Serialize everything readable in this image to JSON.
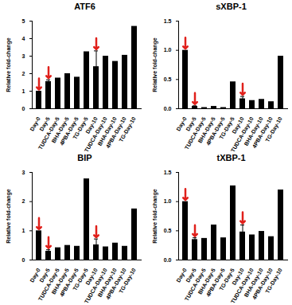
{
  "chart_data": [
    {
      "type": "bar",
      "title": "ATF6",
      "y_label": "Relative fold-change",
      "color": "#000000",
      "categories": [
        "Day-0",
        "Day-5",
        "TUDCA-Day-5",
        "BHA-Day-5",
        "4PBA-Day-5",
        "TG-Day-5",
        "Day-10",
        "TUDCA-Day-10",
        "BHA-Day-10",
        "4PBA-Day-10",
        "TG-Day-10"
      ],
      "values": [
        1.0,
        1.55,
        1.75,
        2.0,
        1.8,
        3.25,
        2.4,
        3.0,
        2.7,
        3.05,
        4.7
      ],
      "errors": [
        null,
        0.1,
        null,
        null,
        null,
        null,
        0.9,
        null,
        null,
        null,
        null
      ],
      "arrows": [
        "Day-0",
        "Day-5",
        "Day-10"
      ],
      "ylim": [
        0,
        5
      ],
      "yticks": [
        0,
        1,
        2,
        3,
        4,
        5
      ]
    },
    {
      "type": "bar",
      "title": "sXBP-1",
      "y_label": "Relative fold-change",
      "color": "#000000",
      "categories": [
        "Day-0",
        "Day-5",
        "TUDCA-Day-5",
        "BHA-Day-5",
        "4PBA-Day-5",
        "TG-Day-5",
        "Day-10",
        "TUDCA-Day-10",
        "BHA-Day-10",
        "4PBA-Day-10",
        "TG-Day-10"
      ],
      "values": [
        1.0,
        0.04,
        0.02,
        0.04,
        0.02,
        0.46,
        0.17,
        0.14,
        0.16,
        0.12,
        0.9
      ],
      "errors": [
        null,
        0.01,
        null,
        null,
        null,
        null,
        0.04,
        null,
        null,
        null,
        null
      ],
      "arrows": [
        "Day-0",
        "Day-5",
        "Day-10"
      ],
      "ylim": [
        0,
        1.5
      ],
      "yticks": [
        {
          "value": 0,
          "label": "0.0"
        },
        {
          "value": 0.5,
          "label": "0.5"
        },
        {
          "value": 1,
          "label": "1.0"
        },
        {
          "value": 1.5,
          "label": "1.5"
        }
      ]
    },
    {
      "type": "bar",
      "title": "BIP",
      "y_label": "Relative fold-change",
      "color": "#000000",
      "categories": [
        "Day-0",
        "Day-5",
        "TUDCA-Day-5",
        "BHA-Day-5",
        "4PBA-Day-5",
        "TG-Day-5",
        "Day-10",
        "TUDCA-Day-10",
        "BHA-Day-10",
        "4PBA-Day-10",
        "TG-Day-10"
      ],
      "values": [
        1.0,
        0.3,
        0.42,
        0.5,
        0.47,
        2.78,
        0.52,
        0.45,
        0.58,
        0.47,
        1.75
      ],
      "errors": [
        null,
        0.05,
        null,
        null,
        null,
        null,
        0.2,
        null,
        null,
        null,
        null
      ],
      "arrows": [
        "Day-0",
        "Day-5",
        "Day-10"
      ],
      "ylim": [
        0,
        3
      ],
      "yticks": [
        0,
        1,
        2,
        3
      ]
    },
    {
      "type": "bar",
      "title": "tXBP-1",
      "y_label": "Relative fold-change",
      "color": "#000000",
      "categories": [
        "Day-0",
        "Day-5",
        "TUDCA-Day-5",
        "BHA-Day-5",
        "4PBA-Day-5",
        "TG-Day-5",
        "Day-10",
        "TUDCA-Day-10",
        "BHA-Day-10",
        "4PBA-Day-10",
        "TG-Day-10"
      ],
      "values": [
        1.0,
        0.35,
        0.37,
        0.6,
        0.38,
        1.27,
        0.48,
        0.43,
        0.49,
        0.4,
        1.2
      ],
      "errors": [
        null,
        0.03,
        null,
        null,
        null,
        null,
        0.12,
        null,
        null,
        null,
        null
      ],
      "arrows": [
        "Day-0",
        "Day-5",
        "Day-10"
      ],
      "ylim": [
        0,
        1.5
      ],
      "yticks": [
        {
          "value": 0,
          "label": "0.0"
        },
        {
          "value": 0.5,
          "label": "0.5"
        },
        {
          "value": 1,
          "label": "1.0"
        },
        {
          "value": 1.5,
          "label": "1.5"
        }
      ]
    }
  ]
}
